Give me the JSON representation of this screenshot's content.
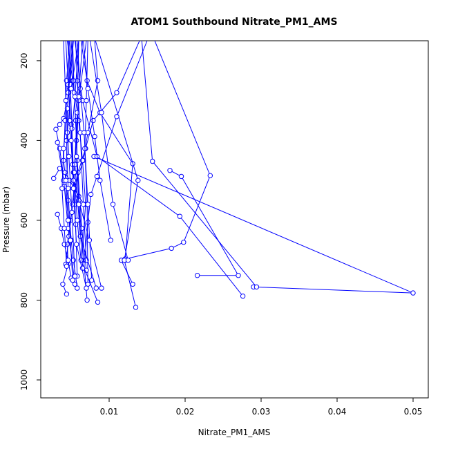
{
  "chart_data": {
    "type": "line",
    "title": "ATOM1 Southbound Nitrate_PM1_AMS",
    "xlabel": "Nitrate_PM1_AMS",
    "ylabel": "Pressure (mbar)",
    "xlim": [
      0.001,
      0.052
    ],
    "ylim": [
      1045,
      150
    ],
    "y_reversed": true,
    "x_ticks": [
      {
        "value": 0.01,
        "label": "0.01"
      },
      {
        "value": 0.02,
        "label": "0.02"
      },
      {
        "value": 0.03,
        "label": "0.03"
      },
      {
        "value": 0.04,
        "label": "0.04"
      },
      {
        "value": 0.05,
        "label": "0.05"
      }
    ],
    "y_ticks": [
      {
        "value": 200,
        "label": "200"
      },
      {
        "value": 400,
        "label": "400"
      },
      {
        "value": 600,
        "label": "600"
      },
      {
        "value": 800,
        "label": "800"
      },
      {
        "value": 1000,
        "label": "1000"
      }
    ],
    "grid": false,
    "legend": "none",
    "series_color": "#0000ff",
    "series": [
      {
        "x": [
          0.0081,
          0.0085,
          0.0072,
          0.0066,
          0.0054,
          0.0049,
          0.0045,
          0.0046,
          0.0039,
          0.0044
        ],
        "y": [
          150,
          250,
          380,
          450,
          520,
          600,
          660,
          710,
          760,
          785
        ]
      },
      {
        "x": [
          0.014,
          0.011,
          0.0079,
          0.0069,
          0.0059,
          0.0052,
          0.0047,
          0.0043
        ],
        "y": [
          150,
          280,
          350,
          420,
          480,
          560,
          640,
          710
        ]
      },
      {
        "x": [
          0.0053,
          0.0048,
          0.004,
          0.0035,
          0.003,
          0.0035,
          0.0041,
          0.0046,
          0.0055
        ],
        "y": [
          150,
          270,
          345,
          360,
          372,
          420,
          515,
          620,
          760
        ]
      },
      {
        "x": [
          0.0063,
          0.0071,
          0.0088,
          0.0131,
          0.0121,
          0.0116,
          0.0131
        ],
        "y": [
          150,
          250,
          330,
          458,
          700,
          700,
          760
        ]
      },
      {
        "x": [
          0.016,
          0.0233,
          0.0198,
          0.0182,
          0.0121,
          0.0116
        ],
        "y": [
          150,
          488,
          655,
          670,
          697,
          700
        ]
      },
      {
        "x": [
          0.0082,
          0.0138,
          0.012,
          0.0135
        ],
        "y": [
          150,
          500,
          700,
          818
        ]
      },
      {
        "x": [
          0.008,
          0.05,
          0.029
        ],
        "y": [
          440,
          782,
          767
        ]
      },
      {
        "x": [
          0.018,
          0.0195,
          0.027,
          0.0216
        ],
        "y": [
          475,
          490,
          738,
          738
        ]
      },
      {
        "x": [
          0.0143,
          0.0157,
          0.0294
        ],
        "y": [
          150,
          452,
          767
        ]
      },
      {
        "x": [
          0.015,
          0.011,
          0.0084,
          0.0076,
          0.0072,
          0.0068
        ],
        "y": [
          150,
          340,
          490,
          535,
          605,
          700
        ]
      },
      {
        "x": [
          0.0055,
          0.0065,
          0.0084,
          0.0193,
          0.0276
        ],
        "y": [
          150,
          300,
          440,
          590,
          790
        ]
      },
      {
        "x": [
          0.0045,
          0.0052,
          0.006,
          0.0065,
          0.0069,
          0.0064
        ],
        "y": [
          150,
          250,
          350,
          450,
          560,
          700
        ]
      },
      {
        "x": [
          0.0048,
          0.0044,
          0.0042,
          0.004,
          0.0046,
          0.005
        ],
        "y": [
          150,
          250,
          350,
          450,
          550,
          650
        ]
      },
      {
        "x": [
          0.0027,
          0.0035,
          0.0042,
          0.0048,
          0.0054,
          0.006,
          0.0067
        ],
        "y": [
          495,
          470,
          480,
          500,
          520,
          540,
          560
        ]
      },
      {
        "x": [
          0.0032,
          0.004,
          0.0047,
          0.0053,
          0.0058
        ],
        "y": [
          405,
          500,
          600,
          700,
          770
        ]
      },
      {
        "x": [
          0.0032,
          0.0037,
          0.0041,
          0.0046,
          0.005
        ],
        "y": [
          585,
          620,
          660,
          700,
          745
        ]
      },
      {
        "x": [
          0.0072,
          0.007,
          0.0068,
          0.0071,
          0.0072
        ],
        "y": [
          150,
          300,
          420,
          560,
          760
        ]
      },
      {
        "x": [
          0.0056,
          0.0058,
          0.0062,
          0.0066,
          0.007
        ],
        "y": [
          150,
          250,
          380,
          560,
          700
        ]
      },
      {
        "x": [
          0.005,
          0.0053,
          0.0056,
          0.0058,
          0.0064,
          0.007
        ],
        "y": [
          150,
          250,
          350,
          450,
          620,
          725
        ]
      },
      {
        "x": [
          0.0043,
          0.0046,
          0.005,
          0.0052,
          0.0055,
          0.0058
        ],
        "y": [
          150,
          260,
          360,
          460,
          560,
          740
        ]
      },
      {
        "x": [
          0.0058,
          0.0062,
          0.0067,
          0.0072,
          0.0077
        ],
        "y": [
          150,
          270,
          380,
          560,
          750
        ]
      },
      {
        "x": [
          0.0047,
          0.0049,
          0.0051,
          0.0053,
          0.0056
        ],
        "y": [
          150,
          260,
          370,
          480,
          610
        ]
      },
      {
        "x": [
          0.0052,
          0.0054,
          0.0057,
          0.006,
          0.0071
        ],
        "y": [
          150,
          280,
          400,
          550,
          800
        ]
      },
      {
        "x": [
          0.0066,
          0.0072,
          0.0081,
          0.0088,
          0.0102
        ],
        "y": [
          150,
          270,
          390,
          500,
          650
        ]
      },
      {
        "x": [
          0.007,
          0.006,
          0.0055,
          0.0062,
          0.0083
        ],
        "y": [
          150,
          300,
          460,
          640,
          770
        ]
      },
      {
        "x": [
          0.005,
          0.0046,
          0.0044,
          0.0046,
          0.0049,
          0.0052
        ],
        "y": [
          150,
          280,
          400,
          520,
          650,
          750
        ]
      },
      {
        "x": [
          0.006,
          0.0058,
          0.0054,
          0.0058,
          0.0063,
          0.0085
        ],
        "y": [
          150,
          330,
          480,
          600,
          700,
          805
        ]
      },
      {
        "x": [
          0.0075,
          0.009,
          0.0105,
          0.0125
        ],
        "y": [
          150,
          330,
          560,
          700
        ]
      },
      {
        "x": [
          0.0046,
          0.0048,
          0.0053,
          0.0074,
          0.009
        ],
        "y": [
          150,
          350,
          500,
          650,
          770
        ]
      },
      {
        "x": [
          0.0065,
          0.006,
          0.0057,
          0.006,
          0.0065
        ],
        "y": [
          150,
          290,
          440,
          560,
          720
        ]
      },
      {
        "x": [
          0.0052,
          0.0045,
          0.004,
          0.0038,
          0.0041,
          0.0044
        ],
        "y": [
          150,
          320,
          420,
          520,
          620,
          715
        ]
      },
      {
        "x": [
          0.006,
          0.005,
          0.0045,
          0.0043,
          0.0046
        ],
        "y": [
          150,
          270,
          380,
          500,
          600
        ]
      },
      {
        "x": [
          0.004,
          0.0043,
          0.0047,
          0.0051,
          0.0055
        ],
        "y": [
          150,
          300,
          440,
          580,
          740
        ]
      },
      {
        "x": [
          0.006,
          0.0055,
          0.005,
          0.0053,
          0.0057,
          0.007
        ],
        "y": [
          150,
          290,
          400,
          520,
          660,
          770
        ]
      }
    ]
  }
}
